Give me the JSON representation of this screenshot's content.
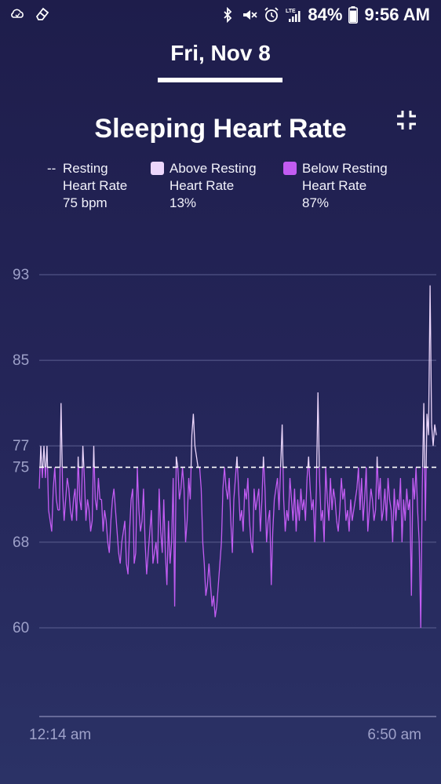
{
  "status_bar": {
    "left_icons": [
      "cloud-sync-icon",
      "eraser-icon"
    ],
    "right_icons": [
      "bluetooth-icon",
      "vibrate-mute-icon",
      "alarm-icon",
      "lte-signal-icon",
      "battery-icon"
    ],
    "battery_percent": "84%",
    "time": "9:56 AM"
  },
  "header": {
    "date": "Fri, Nov 8"
  },
  "chart_title": "Sleeping Heart Rate",
  "legend": [
    {
      "marker": "--",
      "lines": [
        "Resting",
        "Heart Rate",
        "75 bpm"
      ],
      "color": "#ffffff"
    },
    {
      "marker": "square",
      "lines": [
        "Above Resting",
        "Heart Rate",
        "13%"
      ],
      "color": "#ecd6fb"
    },
    {
      "marker": "square",
      "lines": [
        "Below Resting",
        "Heart Rate",
        "87%"
      ],
      "color": "#c25cf2"
    }
  ],
  "chart_data": {
    "type": "line",
    "title": "Sleeping Heart Rate",
    "y_ticks": [
      93,
      85,
      77,
      75,
      68,
      60
    ],
    "y_range": [
      53,
      93
    ],
    "x_labels": [
      "12:14 am",
      "6:50 am"
    ],
    "resting": 75,
    "above_color": "#ecd6fb",
    "below_color": "#c25cf2",
    "grid": "horizontal",
    "y_values": [
      73,
      77,
      74,
      77,
      74,
      77,
      71,
      70,
      69,
      73,
      75,
      72,
      71,
      71,
      81,
      73,
      70,
      72,
      74,
      73,
      71,
      70,
      72,
      73,
      70,
      76,
      72,
      71,
      77,
      74,
      70,
      72,
      71,
      69,
      70,
      77,
      72,
      71,
      74,
      72,
      72,
      69,
      71,
      70,
      68,
      67,
      70,
      72,
      73,
      71,
      69,
      67,
      66,
      68,
      69,
      70,
      66,
      65,
      69,
      72,
      73,
      66,
      67,
      75,
      71,
      69,
      70,
      73,
      68,
      65,
      67,
      69,
      71,
      66,
      67,
      68,
      66,
      73,
      69,
      67,
      72,
      67,
      64,
      70,
      66,
      68,
      74,
      62,
      76,
      75,
      72,
      73,
      75,
      73,
      68,
      70,
      74,
      72,
      78,
      80,
      77,
      76,
      75,
      75,
      73,
      68,
      66,
      63,
      64,
      66,
      64,
      62,
      63,
      61,
      62,
      64,
      66,
      68,
      73,
      75,
      73,
      72,
      74,
      70,
      67,
      72,
      74,
      76,
      73,
      70,
      71,
      69,
      73,
      72,
      74,
      70,
      68,
      67,
      73,
      71,
      72,
      73,
      69,
      72,
      76,
      73,
      68,
      70,
      71,
      64,
      69,
      72,
      73,
      74,
      71,
      75,
      79,
      72,
      69,
      71,
      70,
      74,
      72,
      70,
      73,
      69,
      72,
      70,
      73,
      71,
      72,
      70,
      74,
      76,
      73,
      71,
      72,
      68,
      73,
      82,
      74,
      70,
      71,
      68,
      75,
      72,
      70,
      74,
      71,
      73,
      72,
      70,
      69,
      71,
      74,
      72,
      73,
      70,
      71,
      69,
      72,
      70,
      71,
      72,
      73,
      75,
      71,
      74,
      70,
      72,
      75,
      69,
      71,
      73,
      72,
      70,
      71,
      76,
      72,
      74,
      70,
      71,
      73,
      70,
      74,
      72,
      71,
      68,
      73,
      70,
      72,
      71,
      74,
      68,
      72,
      70,
      73,
      71,
      72,
      63,
      74,
      72,
      75,
      71,
      68,
      60,
      73,
      81,
      70,
      80,
      78,
      92,
      79,
      77,
      79,
      78
    ],
    "x_start": "12:14 am",
    "x_end": "6:50 am"
  }
}
